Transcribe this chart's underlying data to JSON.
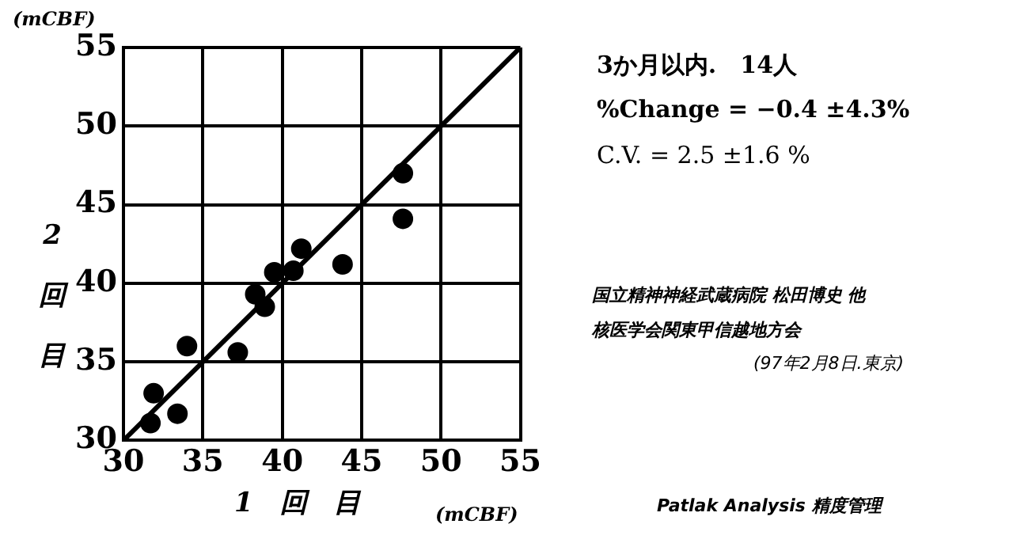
{
  "chart_data": {
    "type": "scatter",
    "xlabel": "1　回　目",
    "ylabel": "2回目",
    "x": [
      31.7,
      31.9,
      33.4,
      34.0,
      37.2,
      38.3,
      38.9,
      39.5,
      40.7,
      41.2,
      43.8,
      47.6,
      47.6
    ],
    "series": [
      {
        "color": "#000000",
        "marker": "circle",
        "values": [
          31.1,
          33.0,
          31.7,
          36.0,
          35.6,
          39.3,
          38.5,
          40.7,
          40.8,
          42.2,
          41.2,
          47.0,
          44.1
        ]
      },
      {
        "type": "line",
        "color": "#000000",
        "marker": "none",
        "x": [
          30,
          55
        ],
        "values": [
          30,
          55
        ]
      }
    ],
    "xlim": [
      30,
      55
    ],
    "ylim": [
      30,
      55
    ],
    "xticks": [
      30,
      35,
      40,
      45,
      50,
      55
    ],
    "yticks": [
      30,
      35,
      40,
      45,
      50,
      55
    ],
    "grid": true,
    "legend": false,
    "line_style": "solid",
    "annotations": [
      "(mCBF)",
      "(mCBF)",
      "3か月以内.　14人",
      "%Change = −0.4 ±4.3%",
      "C.V. = 2.5 ±1.6 %",
      "国立精神神経武蔵病院 松田博史 他",
      "核医学会関東甲信越地方会",
      "(97年2月8日.東京)",
      "Patlak Analysis 精度管理"
    ]
  }
}
